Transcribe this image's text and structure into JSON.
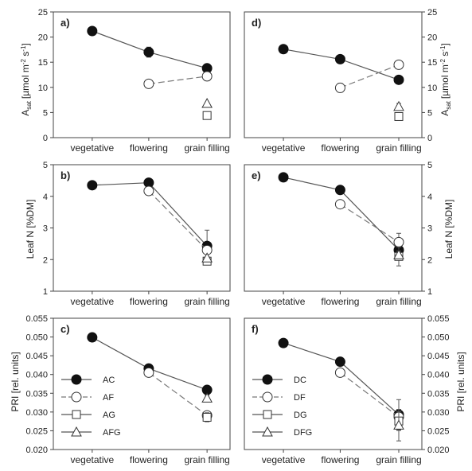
{
  "figure": {
    "panel_letters": [
      "a)",
      "b)",
      "c)",
      "d)",
      "e)",
      "f)"
    ],
    "ylabels": {
      "asat_main": "A",
      "asat_sub": "sat",
      "asat_unit": "[µmol m",
      "asat_exp1": "-2",
      "asat_mid": " s",
      "asat_exp2": "-1",
      "asat_close": "]",
      "leafn": "Leaf N [%DM]",
      "pri": "PRI [rel. units]"
    }
  },
  "chart_data": [
    {
      "panel": "a)",
      "type": "line",
      "categories": [
        "vegetative",
        "flowering",
        "grain filling"
      ],
      "ylim": [
        0,
        25
      ],
      "yticks": [
        0,
        5,
        10,
        15,
        20,
        25
      ],
      "tick_format": "int",
      "series": [
        {
          "name": "AC",
          "marker": "filled-circle",
          "dash": false,
          "values": [
            21.2,
            17.0,
            13.8
          ],
          "err": [
            0,
            1.0,
            0.5
          ]
        },
        {
          "name": "AF",
          "marker": "open-circle",
          "dash": true,
          "values": [
            null,
            10.7,
            12.2
          ],
          "err": [
            0,
            0,
            0.9
          ]
        },
        {
          "name": "AG",
          "marker": "open-square",
          "dash": false,
          "values": [
            null,
            null,
            4.4
          ],
          "err": [
            0,
            0,
            0
          ]
        },
        {
          "name": "AFG",
          "marker": "open-triangle",
          "dash": false,
          "values": [
            null,
            null,
            6.8
          ],
          "err": [
            0,
            0,
            0
          ]
        }
      ]
    },
    {
      "panel": "b)",
      "type": "line",
      "categories": [
        "vegetative",
        "flowering",
        "grain filling"
      ],
      "ylim": [
        1,
        5
      ],
      "yticks": [
        1,
        2,
        3,
        4,
        5
      ],
      "tick_format": "int",
      "series": [
        {
          "name": "AC",
          "marker": "filled-circle",
          "dash": false,
          "values": [
            4.35,
            4.43,
            2.43
          ],
          "err": [
            0,
            0.05,
            0.5
          ]
        },
        {
          "name": "AF",
          "marker": "open-circle",
          "dash": true,
          "values": [
            null,
            4.17,
            2.3
          ],
          "err": [
            0,
            0,
            0.12
          ]
        },
        {
          "name": "AG",
          "marker": "open-square",
          "dash": false,
          "values": [
            null,
            null,
            1.95
          ],
          "err": [
            0,
            0,
            0.08
          ]
        },
        {
          "name": "AFG",
          "marker": "open-triangle",
          "dash": false,
          "values": [
            null,
            null,
            2.05
          ],
          "err": [
            0,
            0,
            0
          ]
        }
      ]
    },
    {
      "panel": "c)",
      "type": "line",
      "categories": [
        "vegetative",
        "flowering",
        "grain filling"
      ],
      "ylim": [
        0.02,
        0.055
      ],
      "yticks": [
        0.02,
        0.025,
        0.03,
        0.035,
        0.04,
        0.045,
        0.05,
        0.055
      ],
      "tick_format": "3dp",
      "series": [
        {
          "name": "AC",
          "marker": "filled-circle",
          "dash": false,
          "values": [
            0.0499,
            0.0416,
            0.0359
          ],
          "err": [
            0,
            0.0006,
            0.0006
          ]
        },
        {
          "name": "AF",
          "marker": "open-circle",
          "dash": true,
          "values": [
            null,
            0.0405,
            0.0291
          ],
          "err": [
            0,
            0.001,
            0.001
          ]
        },
        {
          "name": "AG",
          "marker": "open-square",
          "dash": false,
          "values": [
            null,
            null,
            0.0286
          ],
          "err": [
            0,
            0,
            0.0012
          ]
        },
        {
          "name": "AFG",
          "marker": "open-triangle",
          "dash": false,
          "values": [
            null,
            null,
            0.0337
          ],
          "err": [
            0,
            0,
            0.0008
          ]
        }
      ]
    },
    {
      "panel": "d)",
      "type": "line",
      "categories": [
        "vegetative",
        "flowering",
        "grain filling"
      ],
      "ylim": [
        0,
        25
      ],
      "yticks": [
        0,
        5,
        10,
        15,
        20,
        25
      ],
      "tick_format": "int",
      "series": [
        {
          "name": "DC",
          "marker": "filled-circle",
          "dash": false,
          "values": [
            17.6,
            15.6,
            11.5
          ],
          "err": [
            0,
            0,
            0
          ]
        },
        {
          "name": "DF",
          "marker": "open-circle",
          "dash": true,
          "values": [
            null,
            9.9,
            14.5
          ],
          "err": [
            0,
            0.9,
            0
          ]
        },
        {
          "name": "DG",
          "marker": "open-square",
          "dash": false,
          "values": [
            null,
            null,
            4.2
          ],
          "err": [
            0,
            0,
            0.5
          ]
        },
        {
          "name": "DFG",
          "marker": "open-triangle",
          "dash": false,
          "values": [
            null,
            null,
            6.2
          ],
          "err": [
            0,
            0,
            0.6
          ]
        }
      ]
    },
    {
      "panel": "e)",
      "type": "line",
      "categories": [
        "vegetative",
        "flowering",
        "grain filling"
      ],
      "ylim": [
        1,
        5
      ],
      "yticks": [
        1,
        2,
        3,
        4,
        5
      ],
      "tick_format": "int",
      "series": [
        {
          "name": "DC",
          "marker": "filled-circle",
          "dash": false,
          "values": [
            4.6,
            4.2,
            2.3
          ],
          "err": [
            0,
            0,
            0
          ]
        },
        {
          "name": "DF",
          "marker": "open-circle",
          "dash": true,
          "values": [
            null,
            3.75,
            2.55
          ],
          "err": [
            0,
            0,
            0.28
          ]
        },
        {
          "name": "DG",
          "marker": "open-square",
          "dash": false,
          "values": [
            null,
            null,
            2.1
          ],
          "err": [
            0,
            0,
            0.3
          ]
        },
        {
          "name": "DFG",
          "marker": "open-triangle",
          "dash": false,
          "values": [
            null,
            null,
            2.15
          ],
          "err": [
            0,
            0,
            0
          ]
        }
      ]
    },
    {
      "panel": "f)",
      "type": "line",
      "categories": [
        "vegetative",
        "flowering",
        "grain filling"
      ],
      "ylim": [
        0.02,
        0.055
      ],
      "yticks": [
        0.02,
        0.025,
        0.03,
        0.035,
        0.04,
        0.045,
        0.05,
        0.055
      ],
      "tick_format": "3dp",
      "series": [
        {
          "name": "DC",
          "marker": "filled-circle",
          "dash": false,
          "values": [
            0.0484,
            0.0434,
            0.0293
          ],
          "err": [
            0,
            0,
            0.004
          ]
        },
        {
          "name": "DF",
          "marker": "open-circle",
          "dash": true,
          "values": [
            null,
            0.0405,
            0.0287
          ],
          "err": [
            0,
            0,
            0
          ]
        },
        {
          "name": "DG",
          "marker": "open-square",
          "dash": false,
          "values": [
            null,
            null,
            0.0276
          ],
          "err": [
            0,
            0,
            0.0025
          ]
        },
        {
          "name": "DFG",
          "marker": "open-triangle",
          "dash": false,
          "values": [
            null,
            null,
            0.0265
          ],
          "err": [
            0,
            0,
            0.0042
          ]
        }
      ]
    }
  ]
}
